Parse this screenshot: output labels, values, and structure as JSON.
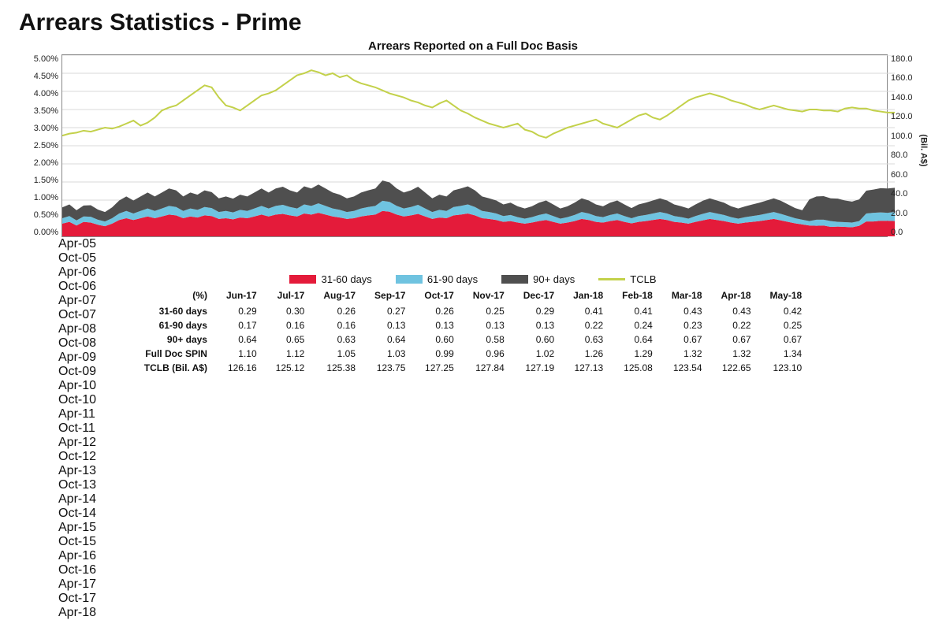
{
  "title": "Arrears Statistics - Prime",
  "chart": {
    "subtitle": "Arrears Reported on a Full Doc Basis",
    "type": "stacked-area-with-line",
    "left_axis": {
      "min": 0.0,
      "max": 5.0,
      "step": 0.5,
      "suffix": "%",
      "ticks": [
        "0.00%",
        "0.50%",
        "1.00%",
        "1.50%",
        "2.00%",
        "2.50%",
        "3.00%",
        "3.50%",
        "4.00%",
        "4.50%",
        "5.00%"
      ]
    },
    "right_axis": {
      "min": 0.0,
      "max": 180.0,
      "step": 20.0,
      "ticks": [
        "0.0",
        "20.0",
        "40.0",
        "60.0",
        "80.0",
        "100.0",
        "120.0",
        "140.0",
        "160.0",
        "180.0"
      ],
      "label": "(Bil. A$)"
    },
    "x_labels": [
      "Apr-05",
      "Oct-05",
      "Apr-06",
      "Oct-06",
      "Apr-07",
      "Oct-07",
      "Apr-08",
      "Oct-08",
      "Apr-09",
      "Oct-09",
      "Apr-10",
      "Oct-10",
      "Apr-11",
      "Oct-11",
      "Apr-12",
      "Oct-12",
      "Apr-13",
      "Oct-13",
      "Apr-14",
      "Oct-14",
      "Apr-15",
      "Oct-15",
      "Apr-16",
      "Oct-16",
      "Apr-17",
      "Oct-17",
      "Apr-18"
    ],
    "colors": {
      "s31_60": "#e41b3a",
      "s61_90": "#6fc3e0",
      "s90p": "#4f4f4f",
      "tclb": "#c3d14a",
      "grid": "#d9d9d9",
      "axis": "#888888",
      "bg": "#ffffff"
    },
    "line_width_tclb": 2,
    "series_31_60": [
      0.35,
      0.4,
      0.3,
      0.4,
      0.38,
      0.32,
      0.28,
      0.35,
      0.45,
      0.5,
      0.45,
      0.5,
      0.55,
      0.5,
      0.55,
      0.6,
      0.58,
      0.5,
      0.55,
      0.52,
      0.58,
      0.56,
      0.48,
      0.5,
      0.47,
      0.52,
      0.5,
      0.55,
      0.6,
      0.55,
      0.6,
      0.62,
      0.58,
      0.55,
      0.63,
      0.6,
      0.65,
      0.6,
      0.55,
      0.52,
      0.48,
      0.5,
      0.55,
      0.58,
      0.6,
      0.7,
      0.68,
      0.6,
      0.55,
      0.58,
      0.62,
      0.55,
      0.48,
      0.52,
      0.5,
      0.58,
      0.6,
      0.63,
      0.58,
      0.5,
      0.48,
      0.45,
      0.4,
      0.42,
      0.38,
      0.35,
      0.38,
      0.42,
      0.45,
      0.4,
      0.35,
      0.38,
      0.42,
      0.48,
      0.45,
      0.4,
      0.38,
      0.42,
      0.45,
      0.4,
      0.36,
      0.4,
      0.42,
      0.45,
      0.48,
      0.45,
      0.4,
      0.38,
      0.35,
      0.4,
      0.44,
      0.48,
      0.45,
      0.42,
      0.38,
      0.35,
      0.38,
      0.4,
      0.42,
      0.45,
      0.48,
      0.44,
      0.4,
      0.36,
      0.33,
      0.3,
      0.29,
      0.3,
      0.26,
      0.27,
      0.26,
      0.25,
      0.29,
      0.41,
      0.41,
      0.43,
      0.43,
      0.42
    ],
    "series_61_90": [
      0.15,
      0.16,
      0.14,
      0.15,
      0.16,
      0.14,
      0.13,
      0.15,
      0.18,
      0.2,
      0.18,
      0.2,
      0.22,
      0.2,
      0.22,
      0.24,
      0.23,
      0.2,
      0.22,
      0.21,
      0.23,
      0.22,
      0.19,
      0.2,
      0.19,
      0.21,
      0.2,
      0.22,
      0.24,
      0.22,
      0.24,
      0.25,
      0.23,
      0.22,
      0.25,
      0.24,
      0.26,
      0.24,
      0.22,
      0.21,
      0.19,
      0.2,
      0.22,
      0.23,
      0.24,
      0.28,
      0.27,
      0.24,
      0.22,
      0.23,
      0.25,
      0.22,
      0.19,
      0.21,
      0.2,
      0.23,
      0.24,
      0.25,
      0.23,
      0.2,
      0.19,
      0.18,
      0.16,
      0.17,
      0.15,
      0.14,
      0.15,
      0.17,
      0.18,
      0.16,
      0.14,
      0.15,
      0.17,
      0.19,
      0.18,
      0.16,
      0.15,
      0.17,
      0.18,
      0.16,
      0.14,
      0.16,
      0.17,
      0.18,
      0.19,
      0.18,
      0.16,
      0.15,
      0.14,
      0.16,
      0.18,
      0.19,
      0.18,
      0.17,
      0.15,
      0.14,
      0.15,
      0.16,
      0.17,
      0.18,
      0.19,
      0.18,
      0.16,
      0.14,
      0.13,
      0.12,
      0.17,
      0.16,
      0.16,
      0.13,
      0.13,
      0.13,
      0.13,
      0.22,
      0.24,
      0.23,
      0.22,
      0.25
    ],
    "series_90p": [
      0.3,
      0.32,
      0.28,
      0.3,
      0.32,
      0.28,
      0.26,
      0.3,
      0.36,
      0.4,
      0.36,
      0.4,
      0.44,
      0.4,
      0.44,
      0.48,
      0.46,
      0.4,
      0.44,
      0.42,
      0.46,
      0.44,
      0.38,
      0.4,
      0.38,
      0.42,
      0.4,
      0.44,
      0.48,
      0.44,
      0.48,
      0.5,
      0.46,
      0.44,
      0.5,
      0.48,
      0.52,
      0.48,
      0.44,
      0.42,
      0.38,
      0.4,
      0.44,
      0.46,
      0.48,
      0.56,
      0.54,
      0.48,
      0.44,
      0.46,
      0.5,
      0.44,
      0.38,
      0.42,
      0.4,
      0.46,
      0.48,
      0.5,
      0.46,
      0.4,
      0.38,
      0.36,
      0.32,
      0.34,
      0.3,
      0.28,
      0.3,
      0.34,
      0.36,
      0.32,
      0.28,
      0.3,
      0.34,
      0.38,
      0.36,
      0.32,
      0.3,
      0.34,
      0.36,
      0.32,
      0.28,
      0.32,
      0.34,
      0.36,
      0.38,
      0.36,
      0.32,
      0.3,
      0.28,
      0.32,
      0.36,
      0.38,
      0.36,
      0.34,
      0.3,
      0.28,
      0.3,
      0.32,
      0.34,
      0.36,
      0.38,
      0.36,
      0.32,
      0.28,
      0.26,
      0.6,
      0.64,
      0.65,
      0.63,
      0.64,
      0.6,
      0.58,
      0.6,
      0.63,
      0.64,
      0.67,
      0.67,
      0.67
    ],
    "series_tclb": [
      100,
      102,
      103,
      105,
      104,
      106,
      108,
      107,
      109,
      112,
      115,
      110,
      113,
      118,
      125,
      128,
      130,
      135,
      140,
      145,
      150,
      148,
      138,
      130,
      128,
      125,
      130,
      135,
      140,
      142,
      145,
      150,
      155,
      160,
      162,
      165,
      163,
      160,
      162,
      158,
      160,
      155,
      152,
      150,
      148,
      145,
      142,
      140,
      138,
      135,
      133,
      130,
      128,
      132,
      135,
      130,
      125,
      122,
      118,
      115,
      112,
      110,
      108,
      110,
      112,
      106,
      104,
      100,
      98,
      102,
      105,
      108,
      110,
      112,
      114,
      116,
      112,
      110,
      108,
      112,
      116,
      120,
      122,
      118,
      116,
      120,
      125,
      130,
      135,
      138,
      140,
      142,
      140,
      138,
      135,
      133,
      131,
      128,
      126,
      128,
      130,
      128,
      126,
      125,
      124,
      126,
      126,
      125,
      125,
      124,
      127,
      128,
      127,
      127,
      125,
      124,
      123,
      123
    ]
  },
  "legend": {
    "s31_60": "31-60 days",
    "s61_90": "61-90 days",
    "s90p": "90+ days",
    "tclb": "TCLB"
  },
  "table": {
    "unit_header": "(%)",
    "columns": [
      "Jun-17",
      "Jul-17",
      "Aug-17",
      "Sep-17",
      "Oct-17",
      "Nov-17",
      "Dec-17",
      "Jan-18",
      "Feb-18",
      "Mar-18",
      "Apr-18",
      "May-18"
    ],
    "rows": [
      {
        "label": "31-60 days",
        "values": [
          "0.29",
          "0.30",
          "0.26",
          "0.27",
          "0.26",
          "0.25",
          "0.29",
          "0.41",
          "0.41",
          "0.43",
          "0.43",
          "0.42"
        ]
      },
      {
        "label": "61-90 days",
        "values": [
          "0.17",
          "0.16",
          "0.16",
          "0.13",
          "0.13",
          "0.13",
          "0.13",
          "0.22",
          "0.24",
          "0.23",
          "0.22",
          "0.25"
        ]
      },
      {
        "label": "90+ days",
        "values": [
          "0.64",
          "0.65",
          "0.63",
          "0.64",
          "0.60",
          "0.58",
          "0.60",
          "0.63",
          "0.64",
          "0.67",
          "0.67",
          "0.67"
        ]
      },
      {
        "label": "Full Doc SPIN",
        "values": [
          "1.10",
          "1.12",
          "1.05",
          "1.03",
          "0.99",
          "0.96",
          "1.02",
          "1.26",
          "1.29",
          "1.32",
          "1.32",
          "1.34"
        ]
      },
      {
        "label": "TCLB (Bil. A$)",
        "values": [
          "126.16",
          "125.12",
          "125.38",
          "123.75",
          "127.25",
          "127.84",
          "127.19",
          "127.13",
          "125.08",
          "123.54",
          "122.65",
          "123.10"
        ]
      }
    ]
  }
}
